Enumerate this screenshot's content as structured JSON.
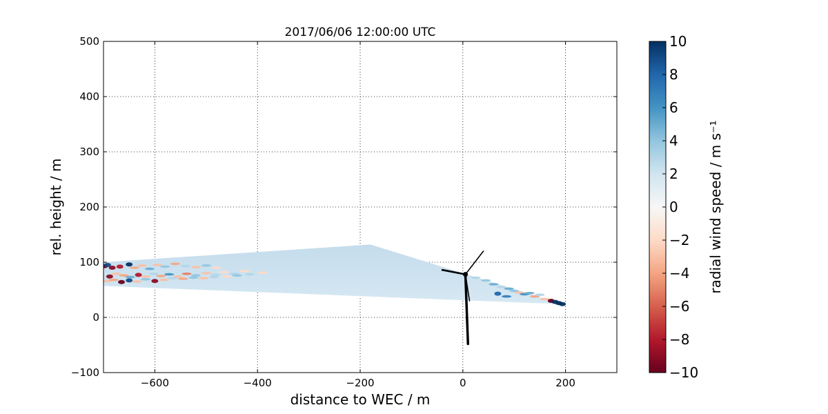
{
  "chart_data": {
    "type": "scatter",
    "title": "2017/06/06 12:00:00 UTC",
    "xlabel": "distance to WEC / m",
    "ylabel": "rel. height / m",
    "xlim": [
      -700,
      300
    ],
    "ylim": [
      -100,
      500
    ],
    "xticks": [
      -600,
      -400,
      -200,
      0,
      200
    ],
    "yticks": [
      -100,
      0,
      100,
      200,
      300,
      400,
      500
    ],
    "xtick_labels": [
      "−600",
      "−400",
      "−200",
      "0",
      "200"
    ],
    "ytick_labels": [
      "−100",
      "0",
      "100",
      "200",
      "300",
      "400",
      "500"
    ],
    "grid": true,
    "scan": {
      "apex": [
        -180,
        132
      ],
      "end": [
        195,
        24
      ],
      "left_top": [
        -700,
        100
      ],
      "left_bottom": [
        -700,
        57
      ],
      "fill_color": "#d6e8f3",
      "fill_color_upper": "#c4dcec"
    },
    "turbine": {
      "hub": [
        5,
        78
      ],
      "tower_base": [
        10,
        -48
      ],
      "blade_tips": [
        [
          -40,
          86
        ],
        [
          40,
          120
        ],
        [
          13,
          30
        ]
      ],
      "color": "#000000"
    },
    "colorbar": {
      "label": "radial wind speed / m s⁻¹",
      "vmin": -10,
      "vmax": 10,
      "ticks": [
        10,
        8,
        6,
        4,
        2,
        0,
        -2,
        -4,
        -6,
        -8,
        -10
      ],
      "tick_labels": [
        "10",
        "8",
        "6",
        "4",
        "2",
        "0",
        "−2",
        "−4",
        "−6",
        "−8",
        "−10"
      ],
      "colormap": "RdBu",
      "stops": [
        "#67001f",
        "#b2182b",
        "#d6604d",
        "#f4a582",
        "#fddbc7",
        "#f7f7f7",
        "#d1e5f0",
        "#92c5de",
        "#4393c3",
        "#2166ac",
        "#053061"
      ]
    },
    "points": [
      {
        "x": -698,
        "y": 93,
        "v": -10
      },
      {
        "x": -692,
        "y": 95,
        "v": 9
      },
      {
        "x": -683,
        "y": 90,
        "v": -9
      },
      {
        "x": -668,
        "y": 92,
        "v": -8
      },
      {
        "x": -650,
        "y": 96,
        "v": 10
      },
      {
        "x": -640,
        "y": 90,
        "v": -4
      },
      {
        "x": -625,
        "y": 94,
        "v": -3
      },
      {
        "x": -610,
        "y": 88,
        "v": 5
      },
      {
        "x": -595,
        "y": 95,
        "v": -3
      },
      {
        "x": -580,
        "y": 92,
        "v": 4
      },
      {
        "x": -560,
        "y": 97,
        "v": -4
      },
      {
        "x": -540,
        "y": 93,
        "v": 3
      },
      {
        "x": -520,
        "y": 91,
        "v": -3
      },
      {
        "x": -500,
        "y": 94,
        "v": 4
      },
      {
        "x": -480,
        "y": 90,
        "v": -2
      },
      {
        "x": -695,
        "y": 78,
        "v": 2
      },
      {
        "x": -688,
        "y": 74,
        "v": -9
      },
      {
        "x": -675,
        "y": 79,
        "v": -3
      },
      {
        "x": -660,
        "y": 76,
        "v": -4
      },
      {
        "x": -648,
        "y": 73,
        "v": 5
      },
      {
        "x": -632,
        "y": 77,
        "v": -8
      },
      {
        "x": -618,
        "y": 74,
        "v": -3
      },
      {
        "x": -602,
        "y": 79,
        "v": 3
      },
      {
        "x": -588,
        "y": 75,
        "v": -4
      },
      {
        "x": -572,
        "y": 78,
        "v": 6
      },
      {
        "x": -555,
        "y": 74,
        "v": -3
      },
      {
        "x": -538,
        "y": 79,
        "v": -5
      },
      {
        "x": -520,
        "y": 76,
        "v": 4
      },
      {
        "x": -500,
        "y": 80,
        "v": -3
      },
      {
        "x": -482,
        "y": 77,
        "v": 3
      },
      {
        "x": -465,
        "y": 82,
        "v": -2
      },
      {
        "x": -445,
        "y": 79,
        "v": 3
      },
      {
        "x": -425,
        "y": 84,
        "v": -2
      },
      {
        "x": -693,
        "y": 66,
        "v": -3
      },
      {
        "x": -680,
        "y": 68,
        "v": -4
      },
      {
        "x": -665,
        "y": 64,
        "v": -10
      },
      {
        "x": -650,
        "y": 67,
        "v": 9
      },
      {
        "x": -635,
        "y": 65,
        "v": -3
      },
      {
        "x": -618,
        "y": 69,
        "v": 4
      },
      {
        "x": -600,
        "y": 66,
        "v": -9
      },
      {
        "x": -582,
        "y": 68,
        "v": -3
      },
      {
        "x": -565,
        "y": 71,
        "v": 3
      },
      {
        "x": -545,
        "y": 70,
        "v": -4
      },
      {
        "x": -525,
        "y": 72,
        "v": 4
      },
      {
        "x": -505,
        "y": 71,
        "v": -3
      },
      {
        "x": -485,
        "y": 73,
        "v": 3
      },
      {
        "x": -460,
        "y": 74,
        "v": -2
      },
      {
        "x": -440,
        "y": 76,
        "v": 4
      },
      {
        "x": -415,
        "y": 78,
        "v": 3
      },
      {
        "x": -390,
        "y": 81,
        "v": -2
      },
      {
        "x": 25,
        "y": 72,
        "v": 3
      },
      {
        "x": 45,
        "y": 67,
        "v": 4
      },
      {
        "x": 60,
        "y": 60,
        "v": 5
      },
      {
        "x": 75,
        "y": 55,
        "v": 3
      },
      {
        "x": 90,
        "y": 52,
        "v": 5
      },
      {
        "x": 100,
        "y": 48,
        "v": 4
      },
      {
        "x": 110,
        "y": 45,
        "v": -3
      },
      {
        "x": 120,
        "y": 42,
        "v": 6
      },
      {
        "x": 130,
        "y": 44,
        "v": 5
      },
      {
        "x": 140,
        "y": 38,
        "v": -4
      },
      {
        "x": 150,
        "y": 41,
        "v": 3
      },
      {
        "x": 160,
        "y": 33,
        "v": -3
      },
      {
        "x": 68,
        "y": 43,
        "v": 8
      },
      {
        "x": 85,
        "y": 38,
        "v": 7
      },
      {
        "x": 172,
        "y": 30,
        "v": -10
      },
      {
        "x": 180,
        "y": 28,
        "v": 10
      },
      {
        "x": 187,
        "y": 26,
        "v": 10
      },
      {
        "x": 194,
        "y": 24,
        "v": 10
      }
    ]
  }
}
